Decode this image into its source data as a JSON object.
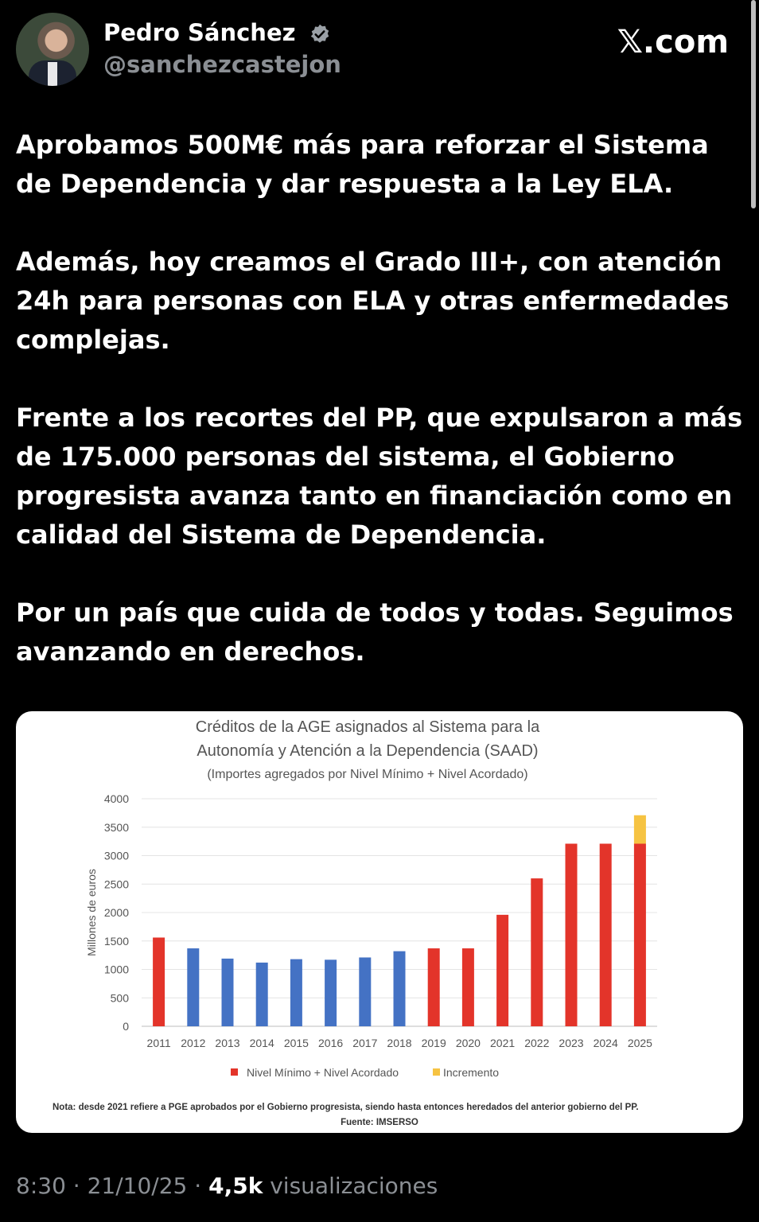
{
  "author": {
    "name": "Pedro Sánchez",
    "handle": "@sanchezcastejon"
  },
  "brand": "𝕏.com",
  "tweet": {
    "paragraphs": [
      "Aprobamos 500M€ más para reforzar el Sistema de Dependencia y dar respuesta a la Ley ELA.",
      "Además, hoy creamos el Grado III+, con atención 24h para personas con ELA y otras enfermedades complejas.",
      "Frente a los recortes del PP, que expulsaron a más de 175.000 personas del sistema, el Gobierno progresista avanza tanto en financiación como en calidad del Sistema de Dependencia.",
      "Por un país que cuida de todos y todas. Seguimos avanzando en derechos."
    ]
  },
  "footer": {
    "time": "8:30",
    "date": "21/10/25",
    "views_count": "4,5k",
    "views_label": "visualizaciones"
  },
  "colors": {
    "red": "#e3342a",
    "blue": "#4472c4",
    "yellow": "#f6c342"
  },
  "chart_data": {
    "type": "bar",
    "title_lines": [
      "Créditos de la AGE asignados al Sistema para la",
      "Autonomía y Atención a la Dependencia (SAAD)"
    ],
    "subtitle": "(Importes agregados por Nivel Mínimo + Nivel Acordado)",
    "ylabel": "Millones de euros",
    "ylim": [
      0,
      4000
    ],
    "yticks": [
      0,
      500,
      1000,
      1500,
      2000,
      2500,
      3000,
      3500,
      4000
    ],
    "categories": [
      "2011",
      "2012",
      "2013",
      "2014",
      "2015",
      "2016",
      "2017",
      "2018",
      "2019",
      "2020",
      "2021",
      "2022",
      "2023",
      "2024",
      "2025"
    ],
    "series": [
      {
        "name": "Nivel Mínimo + Nivel Acordado",
        "values": [
          1560,
          1370,
          1190,
          1120,
          1180,
          1170,
          1210,
          1320,
          1370,
          1370,
          1960,
          2600,
          3210,
          3210,
          3210
        ],
        "bar_colors": [
          "red",
          "blue",
          "blue",
          "blue",
          "blue",
          "blue",
          "blue",
          "blue",
          "red",
          "red",
          "red",
          "red",
          "red",
          "red",
          "red"
        ]
      },
      {
        "name": "Incremento",
        "values": [
          0,
          0,
          0,
          0,
          0,
          0,
          0,
          0,
          0,
          0,
          0,
          0,
          0,
          0,
          500
        ],
        "bar_colors": [
          "yellow"
        ]
      }
    ],
    "legend": [
      "Nivel Mínimo + Nivel Acordado",
      "Incremento"
    ],
    "legend_placement": "bottom",
    "grid": true,
    "note": "Nota: desde 2021 refiere a PGE aprobados por el Gobierno progresista, siendo hasta entonces heredados del anterior gobierno del PP.",
    "source": "Fuente: IMSERSO"
  }
}
